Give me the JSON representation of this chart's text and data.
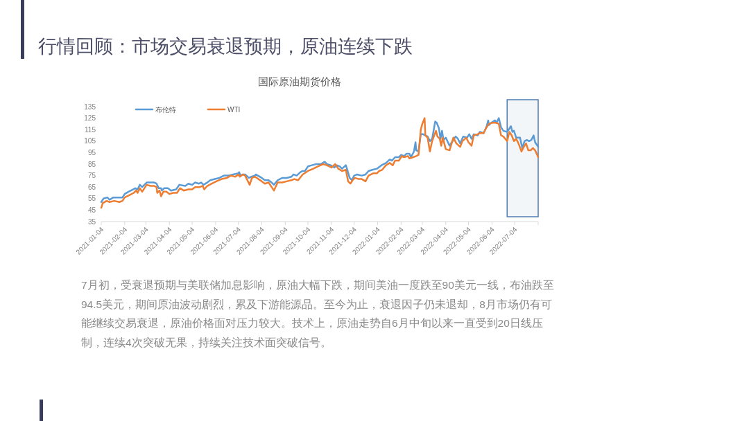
{
  "chart_data": {
    "type": "line",
    "title": "行情回顾：市场交易衰退预期，原油连续下跌",
    "subtitle": "国际原油期货价格",
    "series": [
      {
        "name": "布伦特",
        "color": "#5b9bd5",
        "x": [
          "2021-01-04",
          "2021-01-07",
          "2021-01-12",
          "2021-01-15",
          "2021-01-20",
          "2021-01-26",
          "2021-02-01",
          "2021-02-04",
          "2021-02-09",
          "2021-02-15",
          "2021-02-18",
          "2021-02-21",
          "2021-02-24",
          "2021-02-27",
          "2021-03-05",
          "2021-03-09",
          "2021-03-15",
          "2021-03-18",
          "2021-03-21",
          "2021-03-24",
          "2021-03-25",
          "2021-03-28",
          "2021-04-02",
          "2021-04-06",
          "2021-04-13",
          "2021-04-17",
          "2021-04-25",
          "2021-04-29",
          "2021-05-04",
          "2021-05-08",
          "2021-05-13",
          "2021-05-16",
          "2021-05-19",
          "2021-05-24",
          "2021-05-28",
          "2021-06-03",
          "2021-06-09",
          "2021-06-15",
          "2021-06-21",
          "2021-06-27",
          "2021-07-04",
          "2021-07-05",
          "2021-07-07",
          "2021-07-10",
          "2021-07-13",
          "2021-07-18",
          "2021-07-21",
          "2021-07-26",
          "2021-07-27",
          "2021-08-04",
          "2021-08-08",
          "2021-08-13",
          "2021-08-17",
          "2021-08-20",
          "2021-08-25",
          "2021-08-31",
          "2021-09-06",
          "2021-09-12",
          "2021-09-15",
          "2021-09-19",
          "2021-09-24",
          "2021-09-27",
          "2021-09-30",
          "2021-10-04",
          "2021-10-09",
          "2021-10-15",
          "2021-10-21",
          "2021-10-26",
          "2021-10-29",
          "2021-11-03",
          "2021-11-08",
          "2021-11-11",
          "2021-11-15",
          "2021-11-18",
          "2021-11-23",
          "2021-11-25",
          "2021-11-28",
          "2021-12-01",
          "2021-12-04",
          "2021-12-08",
          "2021-12-14",
          "2021-12-19",
          "2021-12-23",
          "2021-12-28",
          "2022-01-03",
          "2022-01-09",
          "2022-01-15",
          "2022-01-20",
          "2022-01-23",
          "2022-01-27",
          "2022-02-01",
          "2022-02-04",
          "2022-02-08",
          "2022-02-11",
          "2022-02-15",
          "2022-02-17",
          "2022-02-21",
          "2022-02-23",
          "2022-02-24",
          "2022-02-27",
          "2022-03-02",
          "2022-03-05",
          "2022-03-08",
          "2022-03-11",
          "2022-03-14",
          "2022-03-17",
          "2022-03-21",
          "2022-03-23",
          "2022-03-26",
          "2022-03-28",
          "2022-03-30",
          "2022-04-01",
          "2022-04-04",
          "2022-04-09",
          "2022-04-13",
          "2022-04-17",
          "2022-04-20",
          "2022-04-23",
          "2022-04-27",
          "2022-05-02",
          "2022-05-05",
          "2022-05-08",
          "2022-05-11",
          "2022-05-16",
          "2022-05-19",
          "2022-05-24",
          "2022-05-28",
          "2022-05-30",
          "2022-05-31",
          "2022-06-03",
          "2022-06-08",
          "2022-06-10",
          "2022-06-13",
          "2022-06-16",
          "2022-06-19",
          "2022-06-24",
          "2022-06-27",
          "2022-06-29",
          "2022-07-01",
          "2022-07-03",
          "2022-07-06",
          "2022-07-09",
          "2022-07-11",
          "2022-07-14",
          "2022-07-17",
          "2022-07-20",
          "2022-07-23",
          "2022-07-26",
          "2022-07-29",
          "2022-07-31",
          "2022-08-04"
        ],
        "values": [
          52,
          55,
          56,
          54,
          56,
          56,
          56,
          59,
          61,
          63,
          64,
          63,
          67,
          65,
          69,
          69,
          69,
          68,
          64,
          64,
          62,
          64,
          64,
          62,
          63,
          67,
          66,
          68,
          67,
          69,
          68,
          69,
          67,
          69,
          71,
          72,
          73,
          75,
          75,
          76,
          77,
          78,
          75,
          76,
          76,
          73,
          74,
          75,
          76,
          73,
          71,
          71,
          69,
          67,
          71,
          73,
          73,
          74,
          76,
          75,
          78,
          79,
          79,
          83,
          84,
          85,
          85,
          87,
          85,
          84,
          82,
          84,
          83,
          81,
          84,
          80,
          73,
          71,
          75,
          76,
          75,
          76,
          79,
          80,
          81,
          84,
          86,
          89,
          88,
          91,
          91,
          93,
          92,
          94,
          94,
          91,
          96,
          104,
          97,
          96,
          111,
          111,
          110,
          109,
          105,
          107,
          122,
          121,
          116,
          107,
          114,
          106,
          108,
          101,
          105,
          109,
          107,
          103,
          109,
          108,
          111,
          107,
          111,
          110,
          113,
          112,
          118,
          123,
          119,
          121,
          123,
          121,
          125,
          117,
          114,
          113,
          116,
          118,
          113,
          114,
          108,
          108,
          108,
          99,
          105,
          106,
          105,
          106,
          110,
          104,
          100
        ]
      },
      {
        "name": "WTI",
        "color": "#ed7d31",
        "x": [
          "2021-01-04",
          "2021-01-06",
          "2021-01-11",
          "2021-01-15",
          "2021-01-21",
          "2021-01-28",
          "2021-02-01",
          "2021-02-04",
          "2021-02-10",
          "2021-02-16",
          "2021-02-19",
          "2021-02-21",
          "2021-02-24",
          "2021-02-27",
          "2021-03-05",
          "2021-03-10",
          "2021-03-15",
          "2021-03-18",
          "2021-03-19",
          "2021-03-22",
          "2021-03-24",
          "2021-03-27",
          "2021-03-31",
          "2021-04-04",
          "2021-04-09",
          "2021-04-14",
          "2021-04-18",
          "2021-04-23",
          "2021-04-29",
          "2021-05-04",
          "2021-05-08",
          "2021-05-14",
          "2021-05-18",
          "2021-05-20",
          "2021-05-24",
          "2021-05-30",
          "2021-06-05",
          "2021-06-12",
          "2021-06-19",
          "2021-06-24",
          "2021-06-30",
          "2021-07-04",
          "2021-07-06",
          "2021-07-10",
          "2021-07-13",
          "2021-07-19",
          "2021-07-22",
          "2021-07-26",
          "2021-08-04",
          "2021-08-08",
          "2021-08-13",
          "2021-08-20",
          "2021-08-25",
          "2021-08-31",
          "2021-09-06",
          "2021-09-12",
          "2021-09-16",
          "2021-09-21",
          "2021-09-27",
          "2021-10-04",
          "2021-10-11",
          "2021-10-17",
          "2021-10-24",
          "2021-10-29",
          "2021-11-04",
          "2021-11-09",
          "2021-11-13",
          "2021-11-18",
          "2021-11-23",
          "2021-11-26",
          "2021-11-29",
          "2021-12-02",
          "2021-12-05",
          "2021-12-10",
          "2021-12-14",
          "2021-12-19",
          "2021-12-23",
          "2021-12-29",
          "2022-01-03",
          "2022-01-06",
          "2022-01-10",
          "2022-01-15",
          "2022-01-20",
          "2022-01-24",
          "2022-01-27",
          "2022-02-01",
          "2022-02-05",
          "2022-02-08",
          "2022-02-13",
          "2022-02-15",
          "2022-02-20",
          "2022-02-24",
          "2022-02-27",
          "2022-03-02",
          "2022-03-04",
          "2022-03-07",
          "2022-03-08",
          "2022-03-11",
          "2022-03-14",
          "2022-03-17",
          "2022-03-22",
          "2022-03-24",
          "2022-03-27",
          "2022-03-29",
          "2022-03-31",
          "2022-04-04",
          "2022-04-09",
          "2022-04-14",
          "2022-04-18",
          "2022-04-23",
          "2022-04-26",
          "2022-05-01",
          "2022-05-04",
          "2022-05-08",
          "2022-05-11",
          "2022-05-16",
          "2022-05-19",
          "2022-05-24",
          "2022-05-27",
          "2022-05-31",
          "2022-06-05",
          "2022-06-09",
          "2022-06-13",
          "2022-06-16",
          "2022-06-19",
          "2022-06-24",
          "2022-06-27",
          "2022-06-30",
          "2022-07-03",
          "2022-07-06",
          "2022-07-09",
          "2022-07-13",
          "2022-07-16",
          "2022-07-19",
          "2022-07-22",
          "2022-07-25",
          "2022-07-28",
          "2022-07-31",
          "2022-08-04"
        ],
        "values": [
          47,
          51,
          53,
          52,
          53,
          52,
          53,
          56,
          58,
          60,
          62,
          60,
          64,
          61,
          67,
          66,
          66,
          65,
          60,
          62,
          57,
          61,
          61,
          59,
          60,
          60,
          64,
          62,
          63,
          63,
          65,
          65,
          66,
          63,
          66,
          68,
          70,
          72,
          73,
          75,
          74,
          76,
          74,
          76,
          75,
          67,
          73,
          74,
          70,
          68,
          69,
          62,
          69,
          69,
          70,
          71,
          72,
          71,
          76,
          79,
          81,
          83,
          85,
          84,
          82,
          85,
          81,
          79,
          80,
          70,
          68,
          71,
          73,
          72,
          72,
          70,
          75,
          77,
          77,
          79,
          80,
          84,
          86,
          84,
          88,
          88,
          92,
          91,
          92,
          90,
          91,
          92,
          93,
          115,
          120,
          125,
          110,
          108,
          96,
          105,
          114,
          109,
          107,
          101,
          108,
          98,
          97,
          108,
          103,
          100,
          105,
          108,
          104,
          101,
          110,
          111,
          112,
          112,
          116,
          120,
          121,
          121,
          120,
          110,
          109,
          105,
          113,
          110,
          105,
          107,
          103,
          96,
          100,
          103,
          97,
          97,
          99,
          97,
          91
        ]
      }
    ],
    "xlim": [
      "2021-01-04",
      "2022-08-04"
    ],
    "xticks": [
      "2021-01-04",
      "2021-02-04",
      "2021-03-04",
      "2021-04-04",
      "2021-05-04",
      "2021-06-04",
      "2021-07-04",
      "2021-08-04",
      "2021-09-04",
      "2021-10-04",
      "2021-11-04",
      "2021-12-04",
      "2022-01-04",
      "2022-02-04",
      "2022-03-04",
      "2022-04-04",
      "2022-05-04",
      "2022-06-04",
      "2022-07-04",
      {
        "value": "2022-08-04",
        "label": null
      }
    ],
    "ylim": [
      35,
      135
    ],
    "yticks": [
      35,
      45,
      55,
      65,
      75,
      85,
      95,
      105,
      115,
      125,
      135
    ],
    "legend": "top left",
    "bands": [
      {
        "axis": "x",
        "from": "2022-06-24",
        "to": "2022-08-04",
        "color": "#4f7bb0"
      }
    ],
    "annotations": [
      "7月初，受衰退预期与美联储加息影响，原油大幅下跌，期间美油一度跌至90美元一线，布油跌至94.5美元，期间原油波动剧烈，累及下游能源品。至今为止，衰退因子仍未退却，8月市场仍有可能继续交易衰退，原油价格面对压力较大。技术上，原油走势自6月中旬以来一直受到20日线压制，连续4次突破无果，持续关注技术面突破信号。"
    ]
  }
}
